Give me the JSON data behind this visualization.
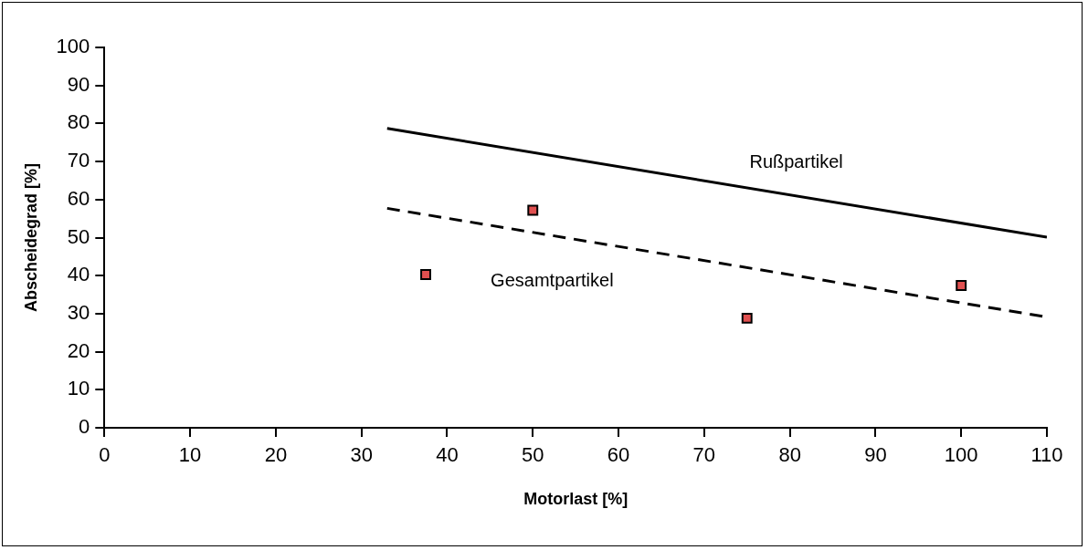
{
  "chart_data": {
    "type": "scatter",
    "xlabel": "Motorlast [%]",
    "ylabel": "Abscheidegrad [%]",
    "xlim": [
      0,
      110
    ],
    "xticks": [
      0,
      10,
      20,
      30,
      40,
      50,
      60,
      70,
      80,
      90,
      100,
      110
    ],
    "ylim": [
      0,
      100
    ],
    "yticks": [
      0,
      10,
      20,
      30,
      40,
      50,
      60,
      70,
      80,
      90,
      100
    ],
    "grid": false,
    "legend": false,
    "marker": "square",
    "series": [
      {
        "color": "#e05050",
        "x": [
          37.5,
          50,
          75,
          100
        ],
        "values": [
          40.3,
          57.2,
          28.8,
          37.4
        ]
      },
      {
        "type": "line",
        "name": "Rußpartikel",
        "color": "#000000",
        "line_style": "solid",
        "marker": "none",
        "x": [
          33,
          110
        ],
        "values": [
          78.7,
          50.1
        ]
      },
      {
        "type": "line",
        "name": "Gesamtpartikel",
        "color": "#000000",
        "line_style": "dashed",
        "marker": "none",
        "x": [
          33,
          110
        ],
        "values": [
          57.7,
          29.1
        ]
      }
    ]
  }
}
